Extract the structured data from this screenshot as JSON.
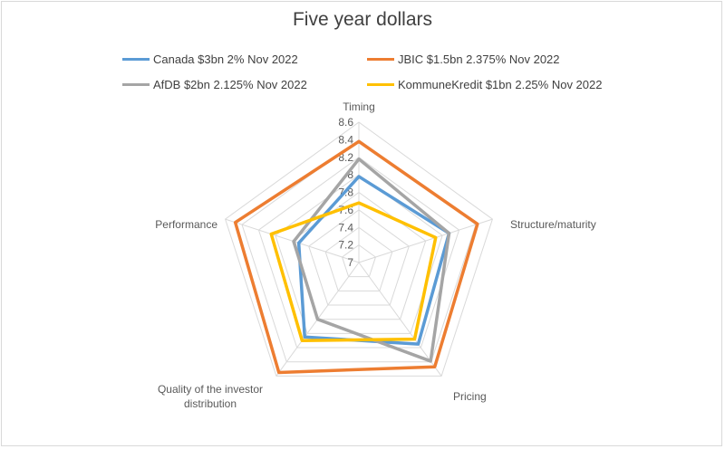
{
  "chart_data": {
    "type": "radar",
    "title": "Five year dollars",
    "categories": [
      "Timing",
      "Structure/maturity",
      "Pricing",
      "Quality of the investor distribution",
      "Performance"
    ],
    "category_label_lines": [
      [
        "Timing"
      ],
      [
        "Structure/maturity"
      ],
      [
        "Pricing"
      ],
      [
        "Quality of the investor",
        "distribution"
      ],
      [
        "Performance"
      ]
    ],
    "rlim": [
      7,
      8.6
    ],
    "ticks": [
      "7",
      "7.2",
      "7.4",
      "7.6",
      "7.8",
      "8",
      "8.2",
      "8.4",
      "8.6"
    ],
    "tick_values": [
      7,
      7.2,
      7.4,
      7.6,
      7.8,
      8,
      8.2,
      8.4,
      8.6
    ],
    "grid": true,
    "legend_position": "top",
    "series": [
      {
        "name": "Canada $3bn 2% Nov 2022",
        "color": "#5b9bd5",
        "values": [
          7.98,
          8.08,
          8.15,
          8.05,
          7.72
        ]
      },
      {
        "name": "JBIC $1.5bn 2.375% Nov 2022",
        "color": "#ed7d31",
        "values": [
          8.38,
          8.42,
          8.47,
          8.55,
          8.48
        ]
      },
      {
        "name": "AfDB $2bn 2.125% Nov 2022",
        "color": "#a5a5a5",
        "values": [
          8.18,
          8.08,
          8.39,
          7.8,
          7.78
        ]
      },
      {
        "name": "KommuneKredit $1bn 2.25% Nov 2022",
        "color": "#ffc000",
        "values": [
          7.68,
          7.92,
          8.08,
          8.1,
          8.05
        ]
      }
    ]
  }
}
